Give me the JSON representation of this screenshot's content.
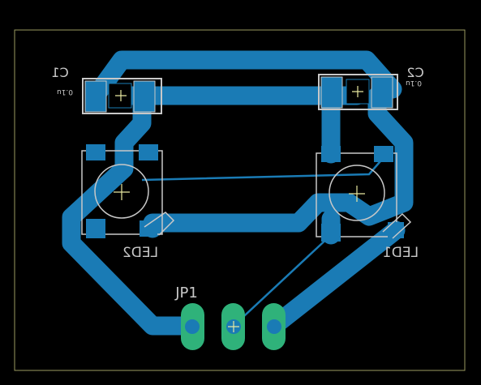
{
  "colors": {
    "background": "#000000",
    "board_outline": "#9a9a60",
    "copper_bottom": "#1a7bb5",
    "silkscreen": "#c8c8c8",
    "pad_top_green": "#2fb27a",
    "drill": "#1a7bb5",
    "origin_marker": "#e8e8a0",
    "thin_trace": "#1a7bb5"
  },
  "labels": {
    "c1_name": "C1",
    "c1_value": "0.1u",
    "c2_name": "C2",
    "c2_value": "0.1u",
    "led1_name": "LED1",
    "led2_name": "LED2",
    "jp1_name": "JP1"
  },
  "components": [
    {
      "ref": "C1",
      "type": "capacitor",
      "value": "0.1u"
    },
    {
      "ref": "C2",
      "type": "capacitor",
      "value": "0.1u"
    },
    {
      "ref": "LED1",
      "type": "led"
    },
    {
      "ref": "LED2",
      "type": "led"
    },
    {
      "ref": "JP1",
      "type": "header",
      "pins": 3
    }
  ]
}
